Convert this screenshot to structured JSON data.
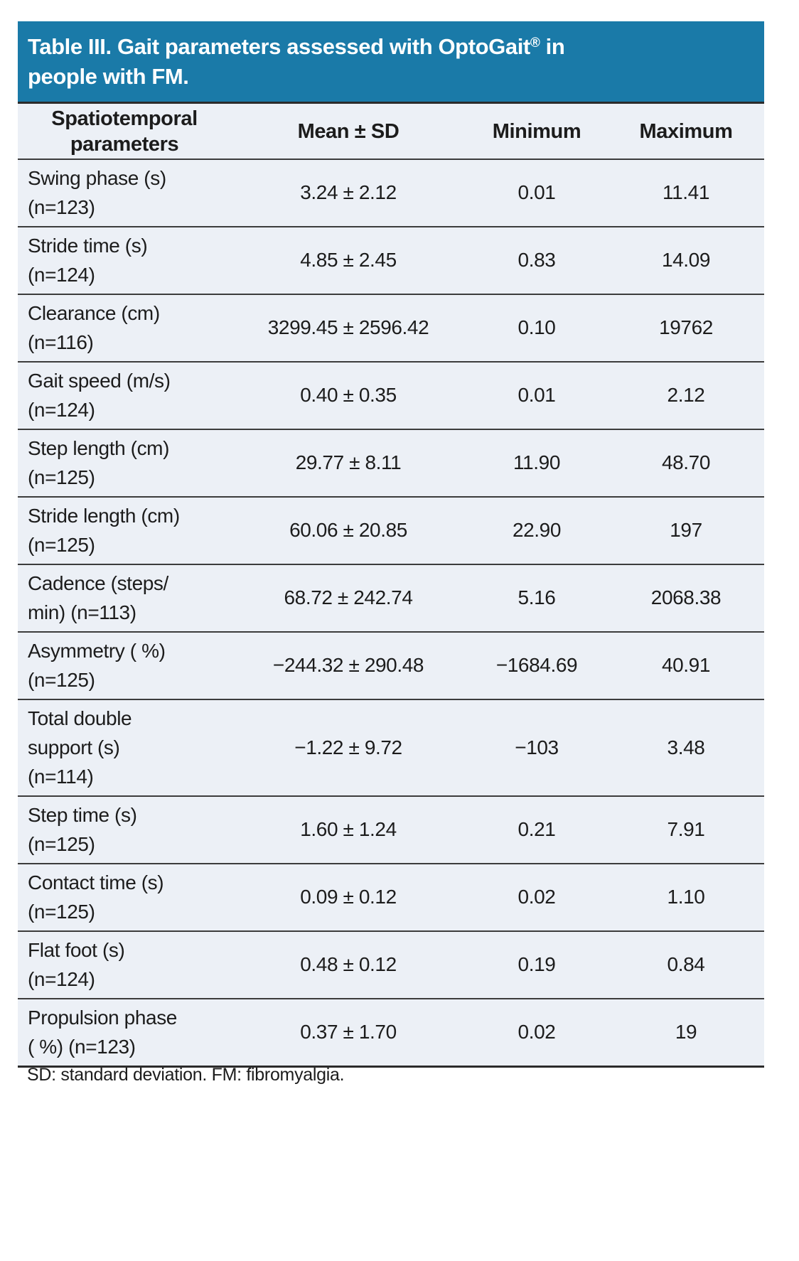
{
  "title": {
    "part1": "Table III. Gait parameters assessed with OptoGait",
    "reg_mark": "®",
    "part2": " in",
    "line2": "people with FM."
  },
  "columns": [
    "Spatiotemporal\nparameters",
    "Mean ± SD",
    "Minimum",
    "Maximum"
  ],
  "rows": [
    {
      "parameter": "Swing phase (s)\n(n=123)",
      "mean_sd": "3.24 ± 2.12",
      "min": "0.01",
      "max": "11.41"
    },
    {
      "parameter": "Stride time (s)\n(n=124)",
      "mean_sd": "4.85 ± 2.45",
      "min": "0.83",
      "max": "14.09"
    },
    {
      "parameter": "Clearance (cm)\n(n=116)",
      "mean_sd": "3299.45 ± 2596.42",
      "min": "0.10",
      "max": "19762"
    },
    {
      "parameter": "Gait speed (m/s)\n(n=124)",
      "mean_sd": "0.40 ± 0.35",
      "min": "0.01",
      "max": "2.12"
    },
    {
      "parameter": "Step length (cm)\n(n=125)",
      "mean_sd": "29.77 ± 8.11",
      "min": "11.90",
      "max": "48.70"
    },
    {
      "parameter": "Stride length (cm)\n(n=125)",
      "mean_sd": "60.06 ± 20.85",
      "min": "22.90",
      "max": "197"
    },
    {
      "parameter": "Cadence (steps/\nmin) (n=113)",
      "mean_sd": "68.72 ± 242.74",
      "min": "5.16",
      "max": "2068.38"
    },
    {
      "parameter": "Asymmetry ( %)\n(n=125)",
      "mean_sd": "−244.32 ± 290.48",
      "min": "−1684.69",
      "max": "40.91"
    },
    {
      "parameter": "Total double\nsupport (s)\n(n=114)",
      "mean_sd": "−1.22 ± 9.72",
      "min": "−103",
      "max": "3.48"
    },
    {
      "parameter": "Step time (s)\n(n=125)",
      "mean_sd": "1.60 ± 1.24",
      "min": "0.21",
      "max": "7.91"
    },
    {
      "parameter": "Contact time (s)\n(n=125)",
      "mean_sd": "0.09 ± 0.12",
      "min": "0.02",
      "max": "1.10"
    },
    {
      "parameter": "Flat foot (s)\n(n=124)",
      "mean_sd": "0.48 ± 0.12",
      "min": "0.19",
      "max": "0.84"
    },
    {
      "parameter": "Propulsion phase\n( %) (n=123)",
      "mean_sd": "0.37 ± 1.70",
      "min": "0.02",
      "max": "19"
    }
  ],
  "footnote": "SD: standard deviation. FM: fibromyalgia.",
  "colors": {
    "header_bg": "#1a7aa8",
    "header_text": "#ffffff",
    "body_bg": "#ecf0f6",
    "rule": "#3c3c3c",
    "text": "#1c1c1c"
  }
}
